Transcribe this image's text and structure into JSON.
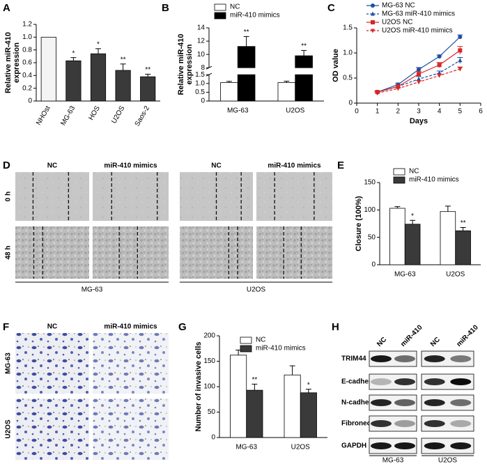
{
  "chart_data": [
    {
      "type": "bar",
      "ylabel": [
        "Relative miR-410",
        "expression"
      ],
      "categories": [
        "NHOst",
        "MG-63",
        "HOS",
        "U2OS",
        "Saos-2"
      ],
      "values": [
        1.0,
        0.63,
        0.74,
        0.48,
        0.38
      ],
      "errors": [
        0,
        0.05,
        0.08,
        0.1,
        0.04
      ],
      "annotations": [
        null,
        "*",
        "*",
        "**",
        "**"
      ],
      "colors": [
        "#f4f4f4",
        "#3a3a3a",
        "#3a3a3a",
        "#3a3a3a",
        "#3a3a3a"
      ],
      "ylim": [
        0,
        1.2
      ],
      "yticks": [
        0,
        0.2,
        0.4,
        0.6,
        0.8,
        {
          "value": 1,
          "label": "1.0"
        },
        1.2
      ]
    },
    {
      "type": "bar",
      "ylabel": [
        "Relative miR-410",
        "expression"
      ],
      "categories": [
        "MG-63",
        "U2OS"
      ],
      "series": [
        {
          "name": "NC",
          "color": "#ffffff",
          "values": [
            1.05,
            1.05
          ],
          "errors": [
            0.07,
            0.08
          ],
          "annotations": [
            null,
            null
          ]
        },
        {
          "name": "miR-410 mimics",
          "color": "#000000",
          "values": [
            11.2,
            9.8
          ],
          "errors": [
            1.5,
            0.8
          ],
          "annotations": [
            "**",
            "**"
          ]
        }
      ],
      "ylim": [
        0,
        14
      ],
      "axis_break": [
        1.5,
        8
      ],
      "yticks": [
        0,
        0.5,
        {
          "value": 1,
          "label": "1.0"
        },
        1.5,
        8,
        10,
        12,
        14
      ]
    },
    {
      "type": "line",
      "xlabel": "Days",
      "ylabel": "OD value",
      "x": [
        1,
        2,
        3,
        4,
        5
      ],
      "series": [
        {
          "name": "MG-63 NC",
          "color": "#1f4fa0",
          "marker": "circle",
          "dashed": false,
          "values": [
            0.22,
            0.37,
            0.67,
            0.93,
            1.32
          ],
          "errors": [
            0.02,
            0.03,
            0.04,
            0.03,
            0.04
          ]
        },
        {
          "name": "MG-63 miR-410 mimics",
          "color": "#1f4fa0",
          "marker": "triangle",
          "dashed": true,
          "values": [
            0.22,
            0.33,
            0.48,
            0.6,
            0.85
          ],
          "errors": [
            0.02,
            0.03,
            0.05,
            0.04,
            0.06
          ]
        },
        {
          "name": "U2OS NC",
          "color": "#d62728",
          "marker": "square",
          "dashed": false,
          "values": [
            0.22,
            0.33,
            0.58,
            0.76,
            1.05
          ],
          "errors": [
            0.02,
            0.03,
            0.05,
            0.05,
            0.08
          ]
        },
        {
          "name": "U2OS miR-410 mimics",
          "color": "#d62728",
          "marker": "triangle-down",
          "dashed": true,
          "values": [
            0.2,
            0.29,
            0.42,
            0.55,
            0.68
          ],
          "errors": [
            0.02,
            0.02,
            0.03,
            0.03,
            0.04
          ]
        }
      ],
      "xlim": [
        0,
        6
      ],
      "xticks": [
        0,
        1,
        2,
        3,
        4,
        5,
        6
      ],
      "ylim": [
        0,
        1.5
      ],
      "yticks": [
        0,
        0.5,
        {
          "value": 1,
          "label": "1.0"
        },
        1.5
      ]
    },
    {
      "type": "bar",
      "ylabel": "Closure (100%)",
      "categories": [
        "MG-63",
        "U2OS"
      ],
      "series": [
        {
          "name": "NC",
          "color": "#ffffff",
          "values": [
            103,
            97
          ],
          "errors": [
            3,
            10
          ],
          "annotations": [
            null,
            null
          ]
        },
        {
          "name": "miR-410 mimics",
          "color": "#3a3a3a",
          "values": [
            74,
            62
          ],
          "errors": [
            7,
            6
          ],
          "annotations": [
            "*",
            "**"
          ]
        }
      ],
      "ylim": [
        0,
        150
      ],
      "yticks": [
        0,
        50,
        100,
        150
      ]
    },
    {
      "type": "bar",
      "ylabel": "Number of invasive cells",
      "categories": [
        "MG-63",
        "U2OS"
      ],
      "series": [
        {
          "name": "NC",
          "color": "#ffffff",
          "values": [
            162,
            123
          ],
          "errors": [
            10,
            18
          ],
          "annotations": [
            null,
            null
          ]
        },
        {
          "name": "miR-410 mimics",
          "color": "#3a3a3a",
          "values": [
            93,
            88
          ],
          "errors": [
            12,
            7
          ],
          "annotations": [
            "**",
            "*"
          ]
        }
      ],
      "ylim": [
        0,
        200
      ],
      "yticks": [
        0,
        50,
        100,
        150,
        200
      ]
    }
  ],
  "panel_labels": [
    "A",
    "B",
    "C",
    "D",
    "E",
    "F",
    "G",
    "H"
  ],
  "wound_healing": {
    "columns": [
      "NC",
      "miR-410 mimics",
      "NC",
      "miR-410 mimics"
    ],
    "rows": [
      "0 h",
      "48 h"
    ],
    "groups": [
      "MG-63",
      "U2OS"
    ]
  },
  "invasion": {
    "columns": [
      "NC",
      "miR-410 mimics"
    ],
    "rows": [
      "MG-63",
      "U2OS"
    ]
  },
  "western_blot": {
    "columns": [
      "NC",
      "miR-410",
      "NC",
      "miR-410"
    ],
    "rows": [
      "TRIM44",
      "E-cadherin",
      "N-cadherin",
      "Fibronectin",
      "GAPDH"
    ],
    "groups": [
      "MG-63",
      "U2OS"
    ]
  }
}
